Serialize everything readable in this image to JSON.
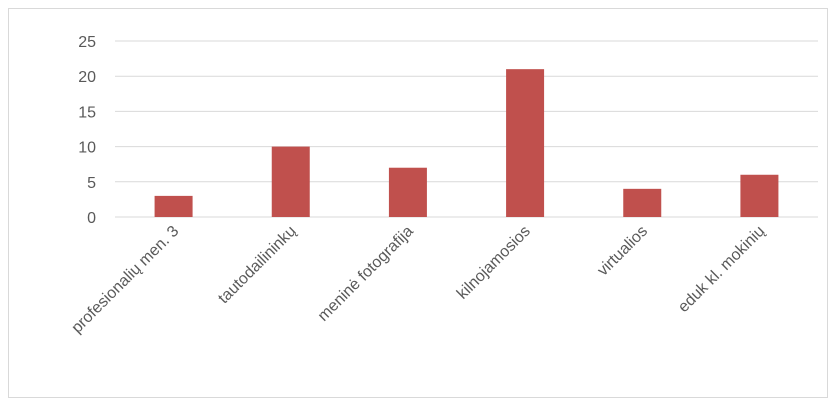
{
  "chart_data": {
    "type": "bar",
    "title": "",
    "xlabel": "",
    "ylabel": "",
    "categories": [
      "profesionalių men. 3",
      "tautodailininkų",
      "meninė fotografija",
      "kilnojamosios",
      "virtualios",
      "eduk kl. mokinių"
    ],
    "values": [
      3,
      10,
      7,
      21,
      4,
      6
    ],
    "ylim": [
      0,
      25
    ],
    "yticks": [
      "0",
      "5",
      "10",
      "15",
      "20",
      "25"
    ],
    "grid": true,
    "bar_color": "#c0504d",
    "grid_color": "#d9d9d9",
    "legend": "none"
  }
}
